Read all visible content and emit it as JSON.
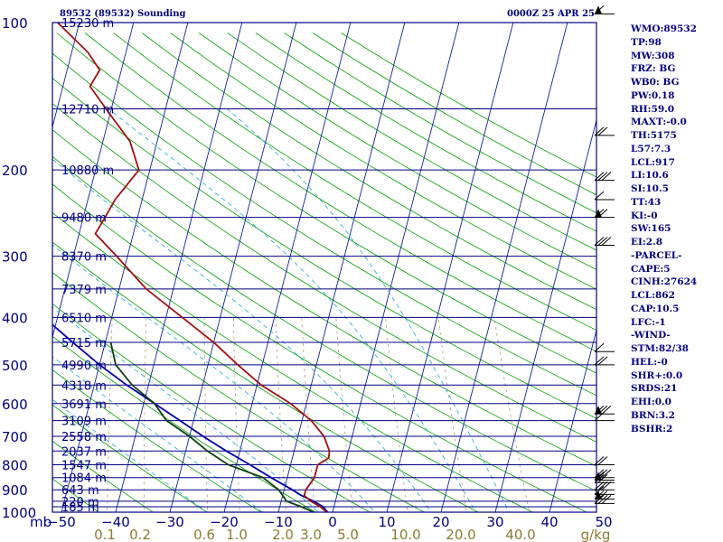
{
  "chart_data": {
    "type": "line",
    "title_left": "89532 (89532) Sounding",
    "title_right": "0000Z 25 APR 25",
    "pressure_label": "mb",
    "mixing_ratio_unit": "g/kg",
    "y_axis": {
      "scale": "log",
      "range": [
        100,
        1000
      ],
      "pressure_ticks": [
        100,
        200,
        300,
        400,
        500,
        600,
        700,
        800,
        900,
        1000
      ]
    },
    "x_axis": {
      "range": [
        -50,
        50
      ],
      "temperature_ticks": [
        -50,
        -40,
        -30,
        -20,
        -10,
        0,
        10,
        20,
        30,
        40,
        50
      ]
    },
    "heights": [
      {
        "p": 100,
        "text": "15230 m"
      },
      {
        "p": 150,
        "text": "12710 m"
      },
      {
        "p": 200,
        "text": "10880 m"
      },
      {
        "p": 250,
        "text": "9480 m"
      },
      {
        "p": 300,
        "text": "8370 m"
      },
      {
        "p": 350,
        "text": "7379 m"
      },
      {
        "p": 400,
        "text": "6510 m"
      },
      {
        "p": 450,
        "text": "5715 m"
      },
      {
        "p": 500,
        "text": "4990 m"
      },
      {
        "p": 550,
        "text": "4318 m"
      },
      {
        "p": 600,
        "text": "3691 m"
      },
      {
        "p": 650,
        "text": "3109 m"
      },
      {
        "p": 700,
        "text": "2558 m"
      },
      {
        "p": 750,
        "text": "2037 m"
      },
      {
        "p": 800,
        "text": "1547 m"
      },
      {
        "p": 850,
        "text": "1084 m"
      },
      {
        "p": 900,
        "text": "643 m"
      },
      {
        "p": 950,
        "text": "220 m"
      },
      {
        "p": 975,
        "text": "185 m"
      }
    ],
    "mixing_ratio_labels": [
      "0.1",
      "0.2",
      "0.6",
      "1.0",
      "2.0",
      "3.0",
      "5.0",
      "10.0",
      "20.0",
      "40.0"
    ],
    "temperature": [
      [
        1010,
        -0.5
      ],
      [
        975,
        -2.5
      ],
      [
        950,
        -4.5
      ],
      [
        925,
        -6
      ],
      [
        900,
        -6
      ],
      [
        850,
        -5
      ],
      [
        800,
        -5
      ],
      [
        775,
        -3.3
      ],
      [
        750,
        -3.5
      ],
      [
        700,
        -5.2
      ],
      [
        650,
        -8.3
      ],
      [
        600,
        -12.9
      ],
      [
        550,
        -19.2
      ],
      [
        500,
        -24.5
      ],
      [
        450,
        -30
      ],
      [
        400,
        -37
      ],
      [
        350,
        -45
      ],
      [
        300,
        -52
      ],
      [
        270,
        -57
      ],
      [
        250,
        -56
      ],
      [
        230,
        -55
      ],
      [
        200,
        -52
      ],
      [
        175,
        -55
      ],
      [
        150,
        -61
      ],
      [
        135,
        -65
      ],
      [
        125,
        -64
      ],
      [
        115,
        -67
      ],
      [
        100,
        -74
      ]
    ],
    "dewpoint": [
      [
        1010,
        -2.5
      ],
      [
        975,
        -6
      ],
      [
        950,
        -9
      ],
      [
        900,
        -11
      ],
      [
        850,
        -14.5
      ],
      [
        800,
        -21.5
      ],
      [
        750,
        -26
      ],
      [
        700,
        -30
      ],
      [
        650,
        -35
      ],
      [
        600,
        -38
      ],
      [
        550,
        -43
      ],
      [
        500,
        -47
      ],
      [
        450,
        -49
      ]
    ],
    "parcel": [
      [
        1010,
        -0.5
      ],
      [
        975,
        -2
      ],
      [
        950,
        -4
      ],
      [
        925,
        -6.5
      ],
      [
        900,
        -8.5
      ],
      [
        850,
        -13
      ],
      [
        800,
        -17.5
      ],
      [
        750,
        -22.5
      ],
      [
        700,
        -27.5
      ],
      [
        650,
        -32.5
      ],
      [
        600,
        -38
      ],
      [
        550,
        -44
      ],
      [
        500,
        -50
      ],
      [
        450,
        -56
      ],
      [
        400,
        -62.5
      ],
      [
        350,
        -70
      ],
      [
        300,
        -78
      ],
      [
        250,
        -87
      ],
      [
        200,
        -95
      ],
      [
        150,
        -105
      ],
      [
        120,
        -111
      ]
    ],
    "wind_pressures": [
      96,
      170,
      210,
      230,
      250,
      285,
      470,
      500,
      630,
      650,
      800,
      850,
      860,
      870,
      900,
      920,
      940,
      960
    ],
    "stats": [
      "WMO:89532",
      "TP:98",
      "MW:308",
      "FRZ: BG",
      "WB0: BG",
      "PW:0.18",
      "RH:59.0",
      "MAXT:-0.0",
      "TH:5175",
      "L57:7.3",
      "LCL:917",
      "LI:10.6",
      "SI:10.5",
      "TT:43",
      "KI:-0",
      "SW:165",
      "EI:2.8",
      "-PARCEL-",
      "CAPE:5",
      "CINH:27624",
      "LCL:862",
      "CAP:10.5",
      "LFC:-1",
      "-WIND-",
      "STM:82/38",
      "HEL:-0",
      "SHR+:0.0",
      "SRDS:21",
      "EHI:0.0",
      "BRN:3.2",
      "BSHR:2"
    ]
  }
}
